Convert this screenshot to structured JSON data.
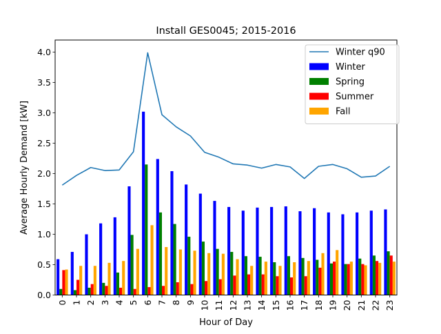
{
  "chart_data": {
    "type": "bar",
    "title": "Install GES0045; 2015-2016",
    "xlabel": "Hour of Day",
    "ylabel": "Average Hourly Demand [kW]",
    "ylim": [
      0,
      4.2
    ],
    "yticks": [
      "0.0",
      "0.5",
      "1.0",
      "1.5",
      "2.0",
      "2.5",
      "3.0",
      "3.5",
      "4.0"
    ],
    "categories": [
      "0",
      "1",
      "2",
      "3",
      "4",
      "5",
      "6",
      "7",
      "8",
      "9",
      "10",
      "11",
      "12",
      "13",
      "14",
      "15",
      "16",
      "17",
      "18",
      "19",
      "20",
      "21",
      "22",
      "23"
    ],
    "grid": false,
    "legend_position": "top-right",
    "line_series": {
      "name": "Winter q90",
      "color": "#1f77b4",
      "values": [
        1.81,
        1.97,
        2.1,
        2.05,
        2.06,
        2.36,
        3.99,
        2.97,
        2.77,
        2.62,
        2.35,
        2.27,
        2.16,
        2.14,
        2.09,
        2.15,
        2.11,
        1.92,
        2.12,
        2.15,
        2.08,
        1.94,
        1.96,
        2.12
      ]
    },
    "series": [
      {
        "name": "Winter",
        "color": "#0000ff",
        "values": [
          0.59,
          0.71,
          1.0,
          1.18,
          1.28,
          1.79,
          3.02,
          2.24,
          2.04,
          1.82,
          1.67,
          1.55,
          1.45,
          1.39,
          1.44,
          1.45,
          1.46,
          1.38,
          1.43,
          1.36,
          1.33,
          1.36,
          1.39,
          1.41
        ]
      },
      {
        "name": "Spring",
        "color": "#008000",
        "values": [
          0.1,
          0.08,
          0.12,
          0.2,
          0.37,
          0.99,
          2.15,
          1.36,
          1.17,
          0.96,
          0.88,
          0.76,
          0.71,
          0.64,
          0.63,
          0.54,
          0.64,
          0.61,
          0.58,
          0.52,
          0.51,
          0.6,
          0.65,
          0.72
        ]
      },
      {
        "name": "Summer",
        "color": "#ff0000",
        "values": [
          0.41,
          0.25,
          0.18,
          0.15,
          0.12,
          0.1,
          0.13,
          0.15,
          0.21,
          0.18,
          0.23,
          0.26,
          0.32,
          0.34,
          0.34,
          0.31,
          0.29,
          0.31,
          0.45,
          0.55,
          0.51,
          0.51,
          0.56,
          0.65
        ]
      },
      {
        "name": "Fall",
        "color": "#ffa500",
        "values": [
          0.42,
          0.48,
          0.48,
          0.53,
          0.56,
          0.76,
          1.15,
          0.79,
          0.75,
          0.73,
          0.69,
          0.68,
          0.59,
          0.48,
          0.55,
          0.48,
          0.54,
          0.56,
          0.69,
          0.74,
          0.55,
          0.49,
          0.53,
          0.55
        ]
      }
    ]
  }
}
